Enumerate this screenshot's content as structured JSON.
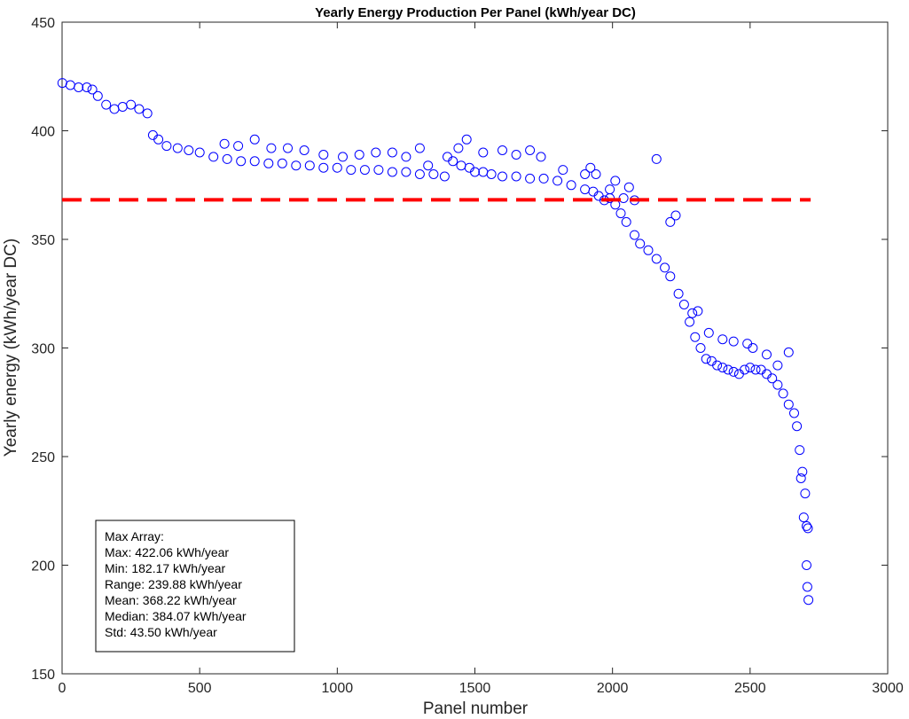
{
  "chart_data": {
    "type": "scatter",
    "title": "Yearly Energy Production Per Panel (kWh/year DC)",
    "xlabel": "Panel number",
    "ylabel": "Yearly energy (kWh/year DC)",
    "xlim": [
      0,
      3000
    ],
    "ylim": [
      150,
      450
    ],
    "xticks": [
      0,
      500,
      1000,
      1500,
      2000,
      2500,
      3000
    ],
    "yticks": [
      150,
      200,
      250,
      300,
      350,
      400,
      450
    ],
    "marker": "open-circle",
    "series_color": "#0000ff",
    "mean_line": {
      "y": 368.22,
      "x_range": [
        0,
        2720
      ],
      "color": "#ff0000",
      "style": "dashed"
    },
    "points": {
      "x": [
        1,
        30,
        60,
        90,
        110,
        130,
        160,
        190,
        220,
        250,
        280,
        310,
        330,
        350,
        380,
        420,
        460,
        500,
        550,
        600,
        650,
        700,
        750,
        800,
        850,
        900,
        950,
        1000,
        1050,
        1100,
        1150,
        1200,
        1250,
        1300,
        1350,
        1390,
        1400,
        1420,
        1450,
        1480,
        1500,
        1530,
        1560,
        1600,
        1650,
        1700,
        1750,
        1800,
        1850,
        1900,
        1930,
        1950,
        1970,
        1990,
        2010,
        2030,
        2050,
        2080,
        2100,
        2130,
        2160,
        2190,
        2210,
        2240,
        2260,
        2280,
        2300,
        2320,
        2340,
        2360,
        2380,
        2400,
        2420,
        2440,
        2460,
        2480,
        2500,
        2520,
        2540,
        2560,
        2580,
        2600,
        2620,
        2640,
        2660,
        2670,
        2680,
        2690,
        2700,
        2705,
        2710,
        590,
        640,
        700,
        760,
        820,
        880,
        950,
        1020,
        1080,
        1140,
        1200,
        1250,
        1300,
        1330,
        1440,
        1470,
        1530,
        1600,
        1650,
        1700,
        1740,
        1820,
        1900,
        1920,
        1940,
        1990,
        2010,
        2040,
        2060,
        2080,
        2160,
        2210,
        2230,
        2290,
        2310,
        2350,
        2400,
        2440,
        2490,
        2510,
        2560,
        2600,
        2640,
        2685,
        2695,
        2705,
        2708,
        2712
      ],
      "y": [
        422,
        421,
        420,
        420,
        419,
        416,
        412,
        410,
        411,
        412,
        410,
        408,
        398,
        396,
        393,
        392,
        391,
        390,
        388,
        387,
        386,
        386,
        385,
        385,
        384,
        384,
        383,
        383,
        382,
        382,
        382,
        381,
        381,
        380,
        380,
        379,
        388,
        386,
        384,
        383,
        381,
        381,
        380,
        379,
        379,
        378,
        378,
        377,
        375,
        373,
        372,
        370,
        368,
        369,
        366,
        362,
        358,
        352,
        348,
        345,
        341,
        337,
        333,
        325,
        320,
        312,
        305,
        300,
        295,
        294,
        292,
        291,
        290,
        289,
        288,
        290,
        291,
        290,
        290,
        288,
        286,
        283,
        279,
        274,
        270,
        264,
        253,
        243,
        233,
        218,
        217,
        394,
        393,
        396,
        392,
        392,
        391,
        389,
        388,
        389,
        390,
        390,
        388,
        392,
        384,
        392,
        396,
        390,
        391,
        389,
        391,
        388,
        382,
        380,
        383,
        380,
        373,
        377,
        369,
        374,
        368,
        387,
        358,
        361,
        316,
        317,
        307,
        304,
        303,
        302,
        300,
        297,
        292,
        298,
        240,
        222,
        200,
        190,
        184
      ]
    },
    "stats_box": {
      "lines": [
        "Max Array:",
        "Max: 422.06 kWh/year",
        "Min: 182.17 kWh/year",
        "Range: 239.88 kWh/year",
        "Mean: 368.22 kWh/year",
        "Median: 384.07 kWh/year",
        "Std: 43.50 kWh/year"
      ]
    },
    "grid": false,
    "legend": "none"
  }
}
